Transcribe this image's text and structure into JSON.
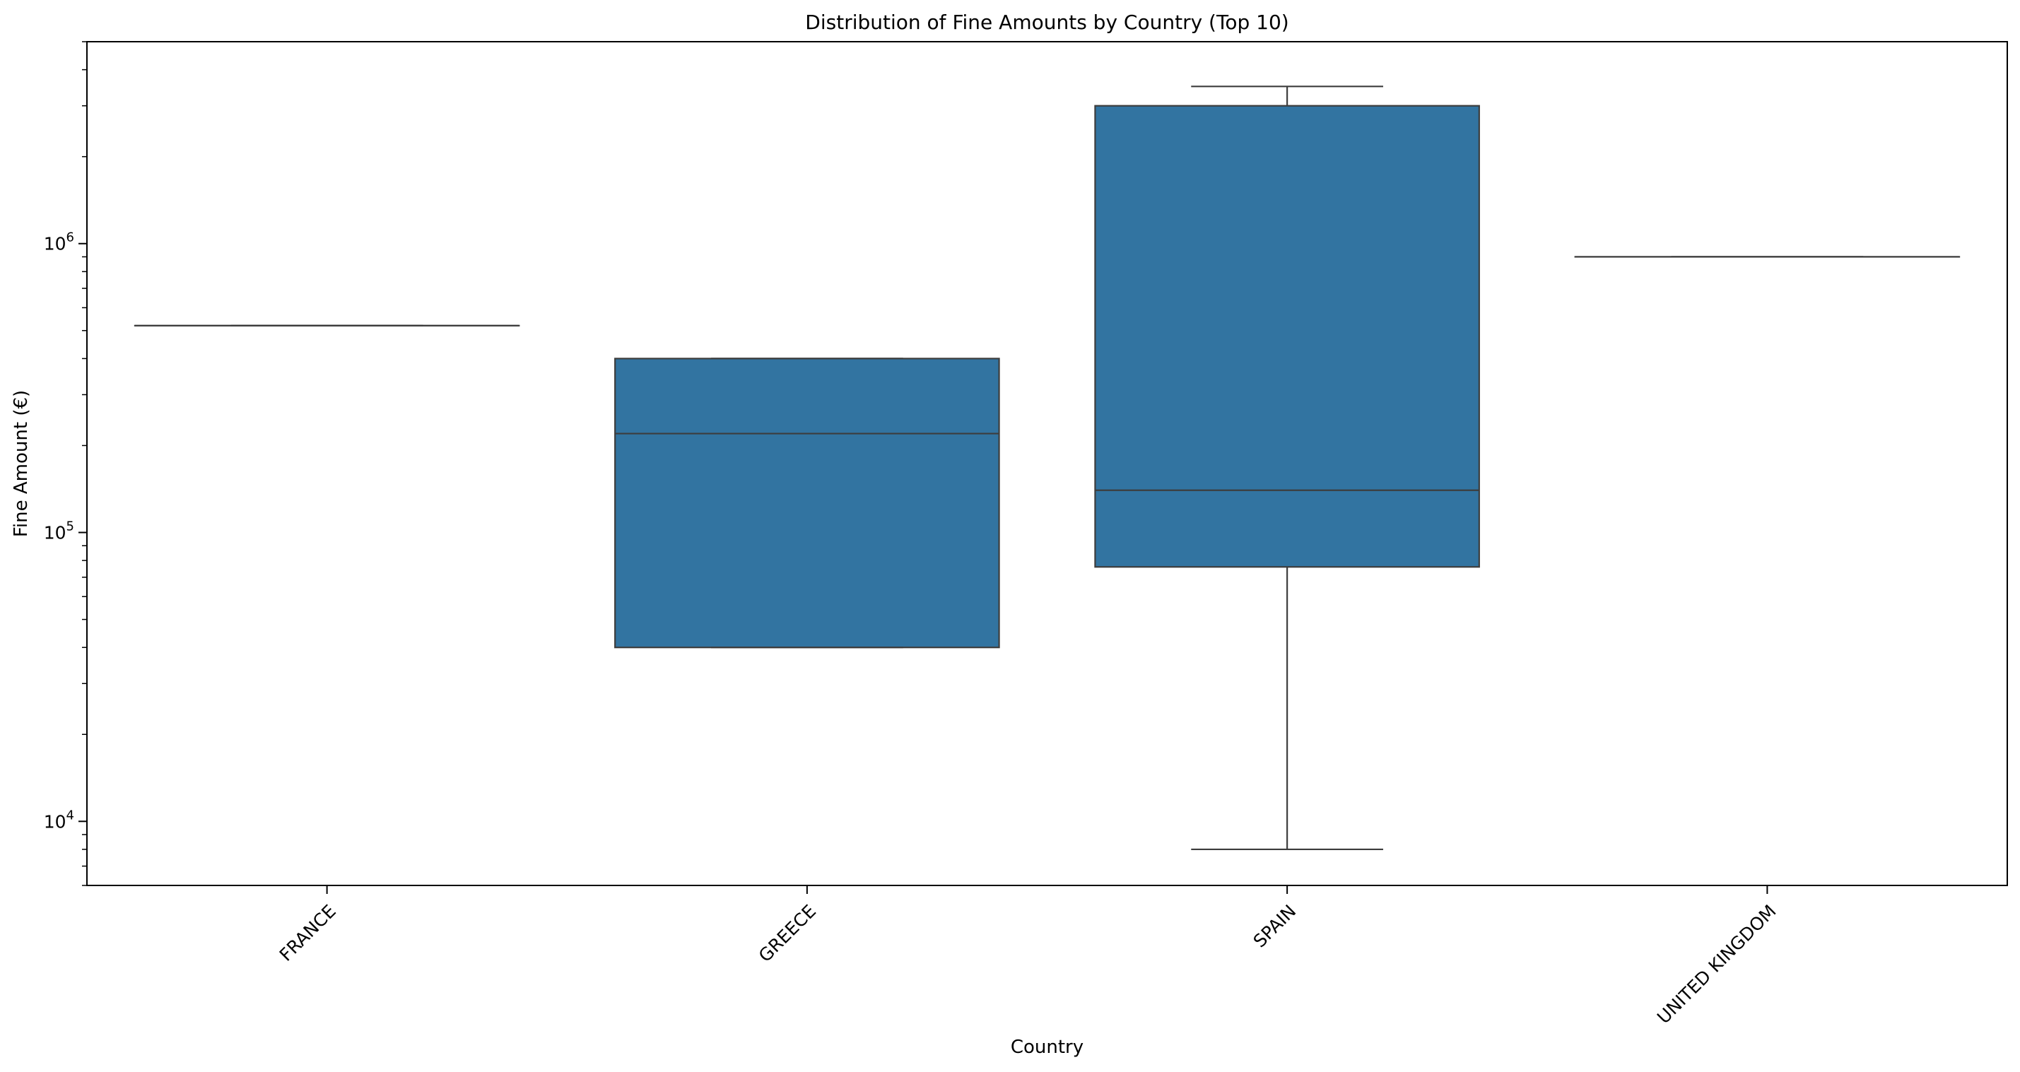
{
  "chart_data": {
    "type": "box",
    "title": "Distribution of Fine Amounts by Country (Top 10)",
    "xlabel": "Country",
    "ylabel": "Fine Amount (€)",
    "yscale": "log",
    "ylim": [
      6000,
      5000000
    ],
    "yticks": [
      {
        "value": 10000,
        "base": "10",
        "exp": "4"
      },
      {
        "value": 100000,
        "base": "10",
        "exp": "5"
      },
      {
        "value": 1000000,
        "base": "10",
        "exp": "6"
      }
    ],
    "grid": false,
    "box_color": "#3274a1",
    "line_color": "#3d3d3d",
    "categories": [
      "FRANCE",
      "GREECE",
      "SPAIN",
      "UNITED KINGDOM"
    ],
    "boxes": [
      {
        "category": "FRANCE",
        "whislo": 520000,
        "q1": 520000,
        "med": 520000,
        "q3": 520000,
        "whishi": 520000
      },
      {
        "category": "GREECE",
        "whislo": 40000,
        "q1": 40000,
        "med": 220000,
        "q3": 400000,
        "whishi": 400000
      },
      {
        "category": "SPAIN",
        "whislo": 8000,
        "q1": 76000,
        "med": 140000,
        "q3": 3000000,
        "whishi": 3500000
      },
      {
        "category": "UNITED KINGDOM",
        "whislo": 900000,
        "q1": 900000,
        "med": 900000,
        "q3": 900000,
        "whishi": 900000
      }
    ]
  }
}
